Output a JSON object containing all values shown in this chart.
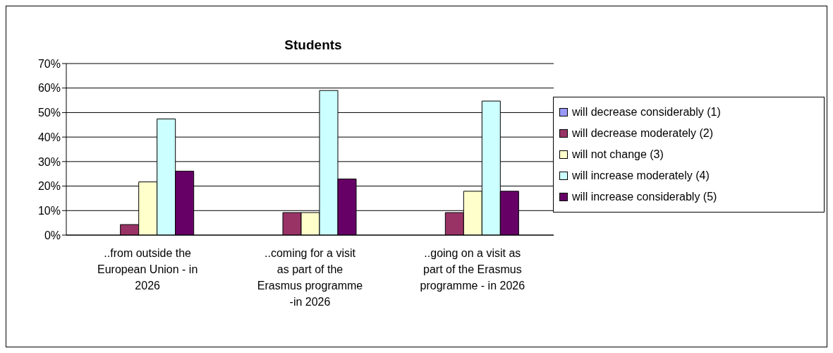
{
  "chart_data": {
    "type": "bar",
    "title": "Students",
    "categories": [
      "..from outside the European Union - in 2026",
      "..coming for a visit as part of the Erasmus programme -in 2026",
      "..going on a visit as part of the Erasmus programme - in 2026"
    ],
    "series": [
      {
        "name": "will decrease considerably (1)",
        "color": "#9999ff",
        "values": [
          0,
          0,
          0
        ]
      },
      {
        "name": "will decrease moderately (2)",
        "color": "#993366",
        "values": [
          4.3,
          9.2,
          9.2
        ]
      },
      {
        "name": "will not change (3)",
        "color": "#ffffcc",
        "values": [
          21.7,
          9.2,
          17.9
        ]
      },
      {
        "name": "will increase moderately (4)",
        "color": "#ccffff",
        "values": [
          47.4,
          59.0,
          54.7
        ]
      },
      {
        "name": "will increase considerably (5)",
        "color": "#660066",
        "values": [
          26.1,
          22.9,
          17.9
        ]
      }
    ],
    "ylim": [
      0,
      70
    ],
    "yticks": [
      {
        "value": 0,
        "label": "0%"
      },
      {
        "value": 10,
        "label": "10%"
      },
      {
        "value": 20,
        "label": "20%"
      },
      {
        "value": 30,
        "label": "30%"
      },
      {
        "value": 40,
        "label": "40%"
      },
      {
        "value": 50,
        "label": "50%"
      },
      {
        "value": 60,
        "label": "60%"
      },
      {
        "value": 70,
        "label": "70%"
      }
    ],
    "grid": "y",
    "legend": "right"
  }
}
